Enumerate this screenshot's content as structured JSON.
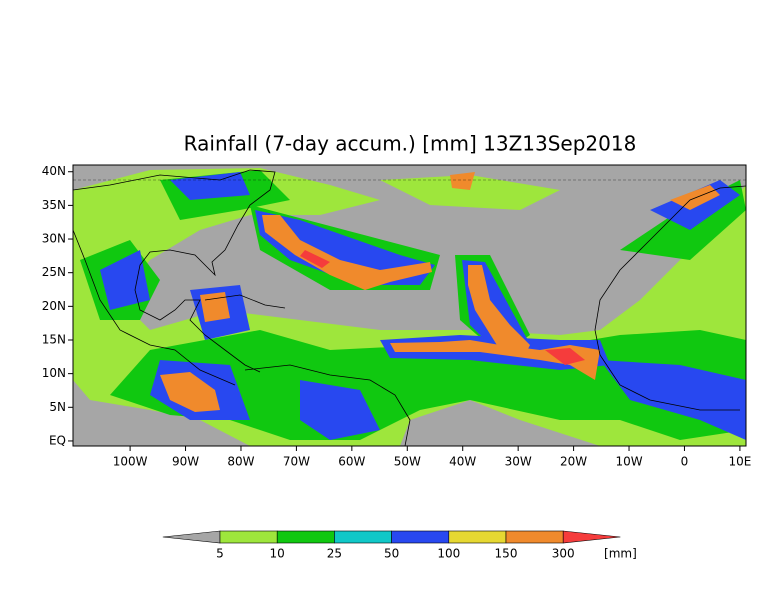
{
  "map": {
    "title": "Rainfall (7-day accum.) [mm] 13Z13Sep2018",
    "lonlim": [
      -110.3,
      11.1
    ],
    "latlim": [
      -0.75,
      41
    ],
    "lat_ticks": [
      {
        "value": 40,
        "label": "40N"
      },
      {
        "value": 35,
        "label": "35N"
      },
      {
        "value": 30,
        "label": "30N"
      },
      {
        "value": 25,
        "label": "25N"
      },
      {
        "value": 20,
        "label": "20N"
      },
      {
        "value": 15,
        "label": "15N"
      },
      {
        "value": 10,
        "label": "10N"
      },
      {
        "value": 5,
        "label": "5N"
      },
      {
        "value": 0,
        "label": "EQ"
      }
    ],
    "lon_ticks": [
      {
        "value": -100,
        "label": "100W"
      },
      {
        "value": -90,
        "label": "90W"
      },
      {
        "value": -80,
        "label": "80W"
      },
      {
        "value": -70,
        "label": "70W"
      },
      {
        "value": -60,
        "label": "60W"
      },
      {
        "value": -50,
        "label": "50W"
      },
      {
        "value": -40,
        "label": "40W"
      },
      {
        "value": -30,
        "label": "30W"
      },
      {
        "value": -20,
        "label": "20W"
      },
      {
        "value": -10,
        "label": "10W"
      },
      0,
      {
        "value": 10,
        "label": "10E"
      }
    ],
    "colorbar": {
      "levels": [
        5,
        10,
        25,
        50,
        100,
        150,
        300
      ],
      "colors": [
        "#a6a6a6",
        "#9ee63c",
        "#10c810",
        "#10c8c8",
        "#2848f0",
        "#e6d832",
        "#f08a2c",
        "#f53c3c"
      ],
      "unit": "[mm]"
    }
  }
}
